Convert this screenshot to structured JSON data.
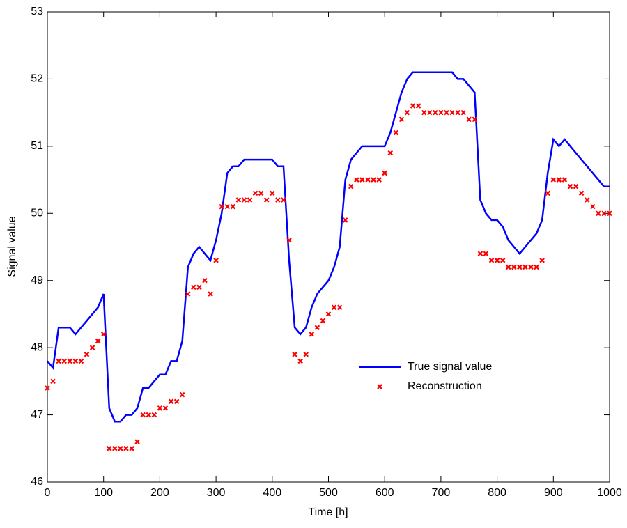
{
  "chart_data": {
    "type": "line",
    "xlabel": "Time [h]",
    "ylabel": "Signal value",
    "x": [
      0,
      10,
      20,
      30,
      40,
      50,
      60,
      70,
      80,
      90,
      100,
      110,
      120,
      130,
      140,
      150,
      160,
      170,
      180,
      190,
      200,
      210,
      220,
      230,
      240,
      250,
      260,
      270,
      280,
      290,
      300,
      310,
      320,
      330,
      340,
      350,
      360,
      370,
      380,
      390,
      400,
      410,
      420,
      430,
      440,
      450,
      460,
      470,
      480,
      490,
      500,
      510,
      520,
      530,
      540,
      550,
      560,
      570,
      580,
      590,
      600,
      610,
      620,
      630,
      640,
      650,
      660,
      670,
      680,
      690,
      700,
      710,
      720,
      730,
      740,
      750,
      760,
      770,
      780,
      790,
      800,
      810,
      820,
      830,
      840,
      850,
      860,
      870,
      880,
      890,
      900,
      910,
      920,
      930,
      940,
      950,
      960,
      970,
      980,
      990,
      1000
    ],
    "series": [
      {
        "name": "True signal value",
        "color": "#0000ff",
        "mode": "line",
        "values": [
          47.8,
          47.7,
          48.3,
          48.3,
          48.3,
          48.2,
          48.3,
          48.4,
          48.5,
          48.6,
          48.8,
          47.1,
          46.9,
          46.9,
          47.0,
          47.0,
          47.1,
          47.4,
          47.4,
          47.5,
          47.6,
          47.6,
          47.8,
          47.8,
          48.1,
          49.2,
          49.4,
          49.5,
          49.4,
          49.3,
          49.6,
          50.0,
          50.6,
          50.7,
          50.7,
          50.8,
          50.8,
          50.8,
          50.8,
          50.8,
          50.8,
          50.7,
          50.7,
          49.3,
          48.3,
          48.2,
          48.3,
          48.6,
          48.8,
          48.9,
          49.0,
          49.2,
          49.5,
          50.5,
          50.8,
          50.9,
          51.0,
          51.0,
          51.0,
          51.0,
          51.0,
          51.2,
          51.5,
          51.8,
          52.0,
          52.1,
          52.1,
          52.1,
          52.1,
          52.1,
          52.1,
          52.1,
          52.1,
          52.0,
          52.0,
          51.9,
          51.8,
          50.2,
          50.0,
          49.9,
          49.9,
          49.8,
          49.6,
          49.5,
          49.4,
          49.5,
          49.6,
          49.7,
          49.9,
          50.6,
          51.1,
          51.0,
          51.1,
          51.0,
          50.9,
          50.8,
          50.7,
          50.6,
          50.5,
          50.4,
          50.4
        ]
      },
      {
        "name": "Reconstruction",
        "color": "#ff0000",
        "mode": "markers",
        "values": [
          47.4,
          47.5,
          47.8,
          47.8,
          47.8,
          47.8,
          47.8,
          47.9,
          48.0,
          48.1,
          48.2,
          46.5,
          46.5,
          46.5,
          46.5,
          46.5,
          46.6,
          47.0,
          47.0,
          47.0,
          47.1,
          47.1,
          47.2,
          47.2,
          47.3,
          48.8,
          48.9,
          48.9,
          49.0,
          48.8,
          49.3,
          50.1,
          50.1,
          50.1,
          50.2,
          50.2,
          50.2,
          50.3,
          50.3,
          50.2,
          50.3,
          50.2,
          50.2,
          49.6,
          47.9,
          47.8,
          47.9,
          48.2,
          48.3,
          48.4,
          48.5,
          48.6,
          48.6,
          49.9,
          50.4,
          50.5,
          50.5,
          50.5,
          50.5,
          50.5,
          50.6,
          50.9,
          51.2,
          51.4,
          51.5,
          51.6,
          51.6,
          51.5,
          51.5,
          51.5,
          51.5,
          51.5,
          51.5,
          51.5,
          51.5,
          51.4,
          51.4,
          49.4,
          49.4,
          49.3,
          49.3,
          49.3,
          49.2,
          49.2,
          49.2,
          49.2,
          49.2,
          49.2,
          49.3,
          50.3,
          50.5,
          50.5,
          50.5,
          50.4,
          50.4,
          50.3,
          50.2,
          50.1,
          50.0,
          50.0,
          50.0
        ]
      }
    ],
    "xlim": [
      0,
      1000
    ],
    "xticks": [
      0,
      100,
      200,
      300,
      400,
      500,
      600,
      700,
      800,
      900,
      1000
    ],
    "ylim": [
      46,
      53
    ],
    "yticks": [
      46,
      47,
      48,
      49,
      50,
      51,
      52,
      53
    ],
    "grid": false,
    "legend": "lower right"
  }
}
